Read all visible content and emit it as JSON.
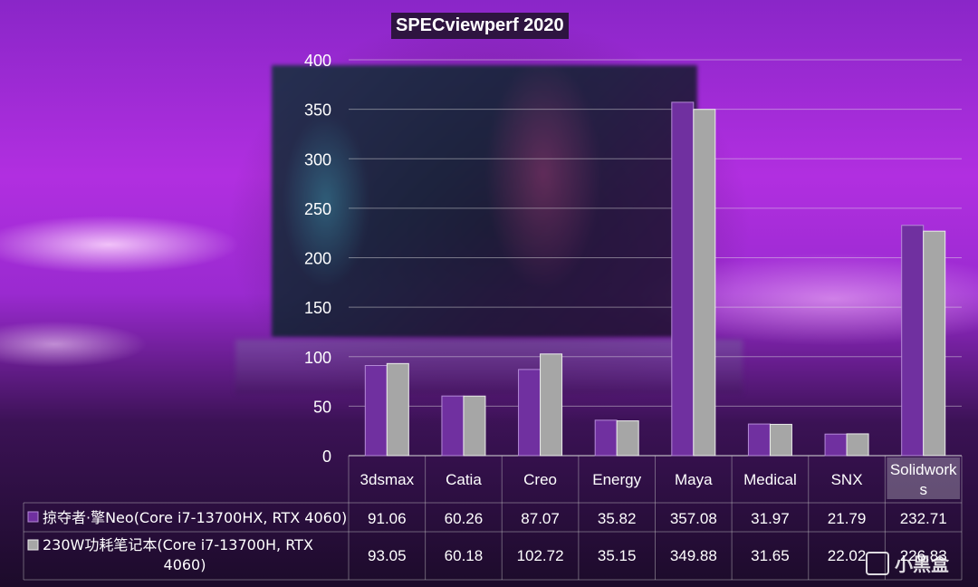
{
  "chart_data": {
    "type": "bar",
    "title": "SPECviewperf 2020",
    "categories": [
      "3dsmax",
      "Catia",
      "Creo",
      "Energy",
      "Maya",
      "Medical",
      "SNX",
      "Solidworks"
    ],
    "category_labels": [
      "3dsmax",
      "Catia",
      "Creo",
      "Energy",
      "Maya",
      "Medical",
      "SNX",
      "Solidwork|s"
    ],
    "yticks": [
      "0",
      "50",
      "100",
      "150",
      "200",
      "250",
      "300",
      "350",
      "400"
    ],
    "ylim": [
      0,
      400
    ],
    "grid": true,
    "series": [
      {
        "name": "掠夺者·擎Neo(Core i7-13700HX, RTX 4060)",
        "color": "#7030a0",
        "values": [
          91.06,
          60.26,
          87.07,
          35.82,
          357.08,
          31.97,
          21.79,
          232.71
        ],
        "labels": [
          "91.06",
          "60.26",
          "87.07",
          "35.82",
          "357.08",
          "31.97",
          "21.79",
          "232.71"
        ]
      },
      {
        "name": "230W功耗笔记本(Core i7-13700H, RTX 4060)",
        "name_lines": [
          "230W功耗笔记本(Core i7-13700H, RTX",
          "4060)"
        ],
        "color": "#a6a6a6",
        "values": [
          93.05,
          60.18,
          102.72,
          35.15,
          349.88,
          31.65,
          22.02,
          226.83
        ],
        "labels": [
          "93.05",
          "60.18",
          "102.72",
          "35.15",
          "349.88",
          "31.65",
          "22.02",
          "226.83"
        ]
      }
    ]
  },
  "watermark": "小黑盒"
}
